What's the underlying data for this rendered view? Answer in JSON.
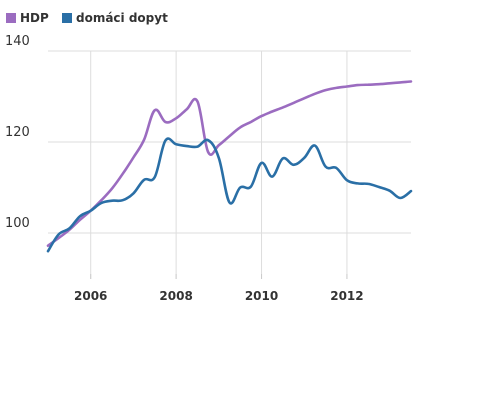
{
  "chart_data": {
    "type": "line",
    "title": "",
    "xlabel": "",
    "ylabel": "",
    "xlim": [
      2005.0,
      2013.5
    ],
    "ylim": [
      91,
      142
    ],
    "yticks": [
      100,
      120,
      140
    ],
    "xticks": [
      2006,
      2008,
      2010,
      2012
    ],
    "grid": {
      "x": true,
      "y": true
    },
    "legend_position": "top-left",
    "series": [
      {
        "name": "HDP",
        "color": "#9b6cc0",
        "x": [
          2005.0,
          2005.25,
          2005.5,
          2005.75,
          2006.0,
          2006.25,
          2006.5,
          2006.75,
          2007.0,
          2007.25,
          2007.5,
          2007.75,
          2008.0,
          2008.25,
          2008.5,
          2008.75,
          2009.0,
          2009.25,
          2009.5,
          2009.75,
          2010.0,
          2010.25,
          2010.5,
          2010.75,
          2011.0,
          2011.25,
          2011.5,
          2011.75,
          2012.0,
          2012.25,
          2012.5,
          2012.75,
          2013.0,
          2013.25,
          2013.5
        ],
        "y": [
          97.2,
          98.9,
          100.7,
          102.9,
          104.9,
          107.2,
          109.8,
          113.0,
          116.6,
          120.5,
          127.0,
          124.4,
          125.2,
          127.2,
          128.9,
          117.8,
          119.3,
          121.3,
          123.2,
          124.4,
          125.7,
          126.7,
          127.6,
          128.6,
          129.6,
          130.6,
          131.4,
          131.9,
          132.2,
          132.5,
          132.6,
          132.7,
          132.9,
          133.1,
          133.3
        ]
      },
      {
        "name": "domáci dopyt",
        "color": "#2a6fa6",
        "x": [
          2005.0,
          2005.25,
          2005.5,
          2005.75,
          2006.0,
          2006.25,
          2006.5,
          2006.75,
          2007.0,
          2007.25,
          2007.5,
          2007.75,
          2008.0,
          2008.25,
          2008.5,
          2008.75,
          2009.0,
          2009.25,
          2009.5,
          2009.75,
          2010.0,
          2010.25,
          2010.5,
          2010.75,
          2011.0,
          2011.25,
          2011.5,
          2011.75,
          2012.0,
          2012.25,
          2012.5,
          2012.75,
          2013.0,
          2013.25,
          2013.5
        ],
        "y": [
          96.0,
          99.7,
          101.0,
          103.7,
          104.9,
          106.6,
          107.1,
          107.2,
          108.7,
          111.7,
          112.3,
          120.3,
          119.5,
          119.1,
          119.0,
          120.4,
          116.5,
          106.7,
          110.0,
          110.2,
          115.4,
          112.4,
          116.4,
          115.0,
          116.5,
          119.2,
          114.6,
          114.3,
          111.6,
          110.9,
          110.8,
          110.1,
          109.3,
          107.7,
          109.2
        ]
      }
    ]
  }
}
